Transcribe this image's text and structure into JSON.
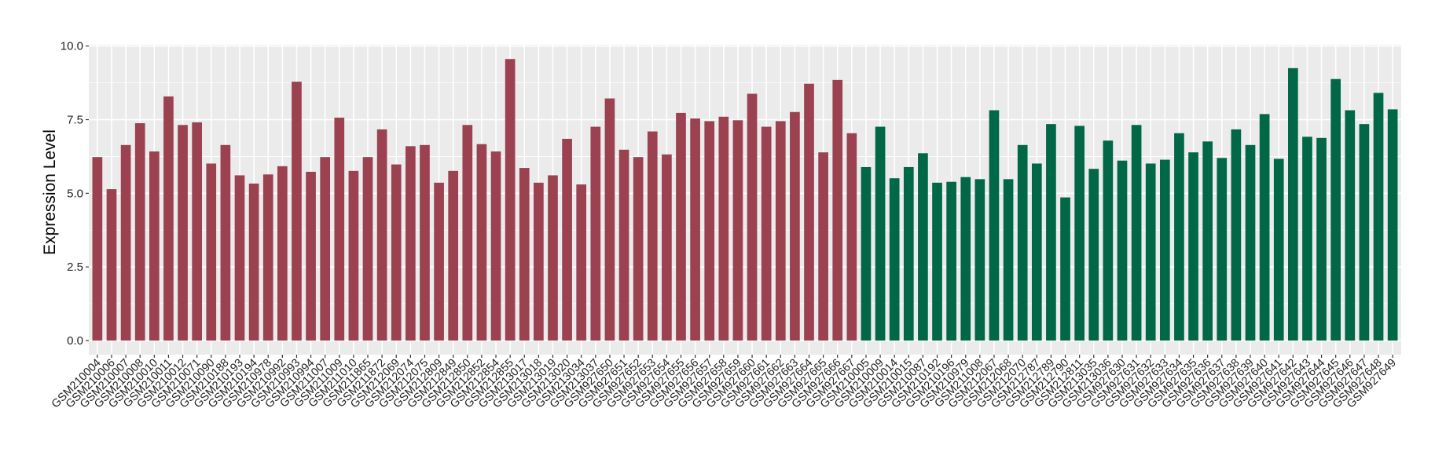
{
  "chart_data": {
    "type": "bar",
    "title": "",
    "xlabel": "",
    "ylabel": "Expression Level",
    "ylim": [
      0,
      10
    ],
    "yticks": [
      "0.0",
      "2.5",
      "5.0",
      "7.5",
      "10.0"
    ],
    "grid": true,
    "legend": "none",
    "colors": {
      "group1": "#9B4150",
      "group2": "#006747",
      "panel": "#EBEBEB",
      "grid": "#FFFFFF"
    },
    "series": [
      {
        "color": "#9B4150",
        "categories": [
          "GSM210004",
          "GSM210006",
          "GSM210007",
          "GSM210008",
          "GSM210010",
          "GSM210011",
          "GSM210012",
          "GSM210071",
          "GSM210090",
          "GSM210188",
          "GSM210193",
          "GSM210194",
          "GSM210978",
          "GSM210992",
          "GSM210993",
          "GSM210994",
          "GSM211007",
          "GSM211009",
          "GSM211010",
          "GSM211865",
          "GSM211872",
          "GSM212069",
          "GSM212074",
          "GSM212075",
          "GSM212809",
          "GSM212849",
          "GSM212850",
          "GSM212852",
          "GSM212854",
          "GSM212855",
          "GSM213017",
          "GSM213018",
          "GSM213019",
          "GSM213020",
          "GSM213034",
          "GSM213037",
          "GSM927650",
          "GSM927651",
          "GSM927652",
          "GSM927653",
          "GSM927654",
          "GSM927655",
          "GSM927656",
          "GSM927657",
          "GSM927658",
          "GSM927659",
          "GSM927660",
          "GSM927661",
          "GSM927662",
          "GSM927663",
          "GSM927664",
          "GSM927665",
          "GSM927666",
          "GSM927667"
        ],
        "values": [
          6.23,
          5.14,
          6.64,
          7.38,
          6.42,
          8.29,
          7.32,
          7.41,
          6.01,
          6.64,
          5.61,
          5.33,
          5.64,
          5.92,
          8.79,
          5.73,
          6.23,
          7.57,
          5.76,
          6.23,
          7.17,
          5.98,
          6.6,
          6.64,
          5.36,
          5.76,
          7.32,
          6.67,
          6.42,
          9.56,
          5.86,
          5.36,
          5.61,
          6.85,
          5.3,
          7.26,
          8.22,
          6.48,
          6.23,
          7.1,
          6.32,
          7.73,
          7.54,
          7.45,
          7.6,
          7.48,
          8.38,
          7.26,
          7.45,
          7.76,
          8.72,
          6.39,
          8.85,
          7.04
        ]
      },
      {
        "color": "#006747",
        "categories": [
          "GSM210005",
          "GSM210009",
          "GSM210014",
          "GSM210015",
          "GSM210087",
          "GSM210192",
          "GSM210196",
          "GSM210979",
          "GSM211008",
          "GSM212067",
          "GSM212068",
          "GSM212070",
          "GSM212787",
          "GSM212789",
          "GSM212790",
          "GSM212811",
          "GSM213035",
          "GSM213036",
          "GSM927630",
          "GSM927631",
          "GSM927632",
          "GSM927633",
          "GSM927634",
          "GSM927635",
          "GSM927636",
          "GSM927637",
          "GSM927638",
          "GSM927639",
          "GSM927640",
          "GSM927641",
          "GSM927642",
          "GSM927643",
          "GSM927644",
          "GSM927645",
          "GSM927646",
          "GSM927647",
          "GSM927648",
          "GSM927649"
        ],
        "values": [
          5.89,
          7.26,
          5.51,
          5.89,
          6.36,
          5.36,
          5.39,
          5.55,
          5.48,
          7.82,
          5.48,
          6.64,
          6.01,
          7.35,
          4.86,
          7.29,
          5.83,
          6.79,
          6.11,
          7.32,
          6.01,
          6.14,
          7.04,
          6.39,
          6.76,
          6.2,
          7.17,
          6.64,
          7.69,
          6.17,
          9.25,
          6.92,
          6.88,
          8.88,
          7.82,
          7.35,
          8.41,
          7.85
        ]
      }
    ]
  }
}
